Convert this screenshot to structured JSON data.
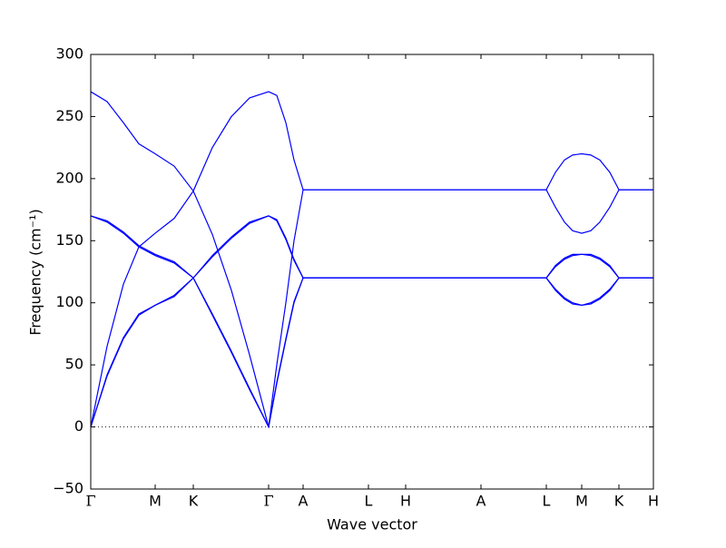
{
  "chart_data": {
    "type": "line",
    "xlabel": "Wave vector",
    "ylabel": "Frequency (cm⁻¹)",
    "xlim": [
      0,
      6.2
    ],
    "ylim": [
      -50,
      300
    ],
    "yticks": [
      {
        "value": -50,
        "label": "−50"
      },
      0,
      50,
      100,
      150,
      200,
      250,
      300
    ],
    "xticks": [
      {
        "value": 0,
        "label": "Γ"
      },
      {
        "value": 0.71,
        "label": "M"
      },
      {
        "value": 1.13,
        "label": "K"
      },
      {
        "value": 1.96,
        "label": "Γ"
      },
      {
        "value": 2.34,
        "label": "A"
      },
      {
        "value": 3.06,
        "label": "L"
      },
      {
        "value": 3.47,
        "label": "H"
      },
      {
        "value": 4.3,
        "label": "A"
      },
      {
        "value": 5.02,
        "label": "L"
      },
      {
        "value": 5.41,
        "label": "M"
      },
      {
        "value": 5.82,
        "label": "K"
      },
      {
        "value": 6.2,
        "label": "H"
      }
    ],
    "zero_line": true,
    "x": [
      0,
      0.18,
      0.36,
      0.53,
      0.71,
      0.92,
      1.13,
      1.34,
      1.55,
      1.75,
      1.96,
      2.05,
      2.15,
      2.24,
      2.34,
      3.06,
      3.47,
      4.3,
      5.02,
      5.12,
      5.22,
      5.31,
      5.41,
      5.51,
      5.61,
      5.72,
      5.82,
      6.2
    ],
    "series": [
      {
        "color": "#0000ff",
        "values": [
          270,
          262,
          245,
          228,
          220,
          210,
          190,
          155,
          110,
          58,
          0,
          50,
          100,
          150,
          191,
          191,
          191,
          191,
          191,
          205,
          215,
          219,
          220,
          219,
          215,
          205,
          191,
          191
        ]
      },
      {
        "color": "#0000ff",
        "values": [
          0,
          65,
          115,
          145,
          156,
          168,
          190,
          225,
          250,
          265,
          270,
          267,
          245,
          215,
          191,
          191,
          191,
          191,
          191,
          177,
          165,
          158,
          156,
          158,
          165,
          177,
          191,
          191
        ]
      },
      {
        "color": "#0000ff",
        "values": [
          170,
          166,
          157,
          146,
          139,
          133,
          120,
          138,
          153,
          165,
          170,
          167,
          152,
          135,
          120,
          120,
          120,
          120,
          120,
          130,
          136,
          139,
          139,
          139,
          136,
          130,
          120,
          120
        ]
      },
      {
        "color": "#0000ff",
        "values": [
          170,
          165,
          156,
          145,
          138,
          132,
          120,
          137,
          152,
          164,
          170,
          166,
          151,
          134,
          120,
          120,
          120,
          120,
          120,
          129,
          135,
          138,
          139,
          138,
          135,
          129,
          120,
          120
        ]
      },
      {
        "color": "#0000ff",
        "values": [
          0,
          42,
          72,
          91,
          98,
          105,
          120,
          90,
          60,
          30,
          0,
          35,
          70,
          100,
          120,
          120,
          120,
          120,
          120,
          110,
          103,
          99,
          98,
          99,
          103,
          110,
          120,
          120
        ]
      },
      {
        "color": "#0000ff",
        "values": [
          0,
          41,
          71,
          90,
          98,
          106,
          120,
          91,
          61,
          31,
          0,
          36,
          71,
          101,
          120,
          120,
          120,
          120,
          120,
          111,
          104,
          100,
          98,
          100,
          104,
          111,
          120,
          120
        ]
      }
    ]
  }
}
